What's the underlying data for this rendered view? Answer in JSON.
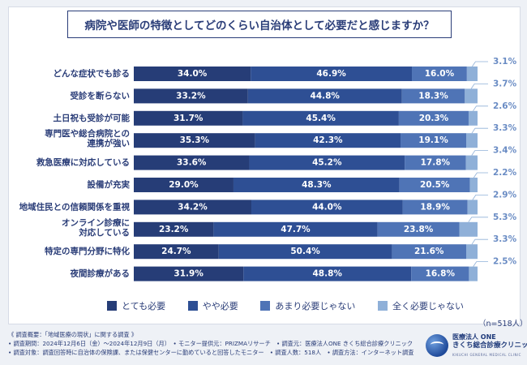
{
  "chart_data": {
    "type": "bar",
    "orientation": "horizontal-stacked-100",
    "title": "病院や医師の特徴としてどのくらい自治体として必要だと感じますか？",
    "categories": [
      "どんな症状でも診る",
      "受診を断らない",
      "土日祝も受診が可能",
      "専門医や総合病院との 連携が強い",
      "救急医療に対応している",
      "設備が充実",
      "地域住民との信頼関係を重視",
      "オンライン診療に 対応している",
      "特定の専門分野に特化",
      "夜間診療がある"
    ],
    "series": [
      {
        "name": "とても必要",
        "color": "#263d77",
        "values": [
          34.0,
          33.2,
          31.7,
          35.3,
          33.6,
          29.0,
          34.2,
          23.2,
          24.7,
          31.9
        ]
      },
      {
        "name": "やや必要",
        "color": "#2e4f94",
        "values": [
          46.9,
          44.8,
          45.4,
          42.3,
          45.2,
          48.3,
          44.0,
          47.7,
          50.4,
          48.8
        ]
      },
      {
        "name": "あまり必要じゃない",
        "color": "#4f74b6",
        "values": [
          16.0,
          18.3,
          20.3,
          19.1,
          17.8,
          20.5,
          18.9,
          23.8,
          21.6,
          16.8
        ]
      },
      {
        "name": "全く必要じゃない",
        "color": "#8fb0d8",
        "values": [
          3.1,
          3.7,
          2.6,
          3.3,
          3.4,
          2.2,
          2.9,
          5.3,
          3.3,
          2.5
        ]
      }
    ],
    "value_suffix": "%",
    "xlim": [
      0,
      100
    ]
  },
  "sample_size": "（n=518人）",
  "footer": {
    "lines": [
      "《 調査概要：「地域医療の現状」に関する調査 》",
      "• 調査期間：2024年12月6日（金）〜2024年12月9日（月）　• モニター提供元：PRIZMAリサーチ　• 調査元：医療法人ONE きくち総合診療クリニック",
      "• 調査対象：調査回答時に自治体の保険課、または保健センターに勤めていると回答したモニター　• 調査人数：518人　• 調査方法：インターネット調査"
    ]
  },
  "logo": {
    "line1": "医療法人 ONE",
    "line2": "きくち総合診療クリニック",
    "line3": "KIKUCHI GENERAL MEDICAL CLINIC"
  }
}
